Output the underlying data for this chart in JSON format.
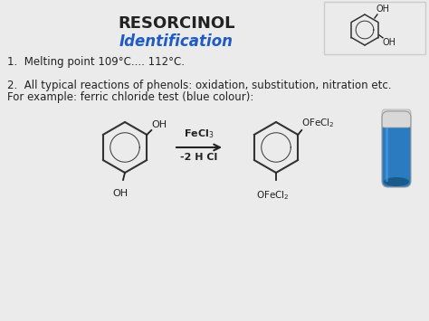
{
  "title": "RESORCINOL",
  "subtitle": "Identification",
  "subtitle_color": "#1F5BC4",
  "background_color": "#ebebeb",
  "text1": "1.  Melting point 109°C.... 112°C.",
  "text2_line1": "2.  All typical reactions of phenols: oxidation, substitution, nitration etc.",
  "text2_line2": "For example: ferric chloride test (blue colour):",
  "text_color": "#222222",
  "title_fontsize": 13,
  "subtitle_fontsize": 12,
  "body_fontsize": 8.5,
  "chem_fontsize": 8,
  "small_fontsize": 7,
  "tube_color": "#2a7bbf",
  "tube_highlight": "#5aabef",
  "tube_dark": "#1a5a8a",
  "tube_cap": "#d8d8d8",
  "box_color": "#cccccc"
}
